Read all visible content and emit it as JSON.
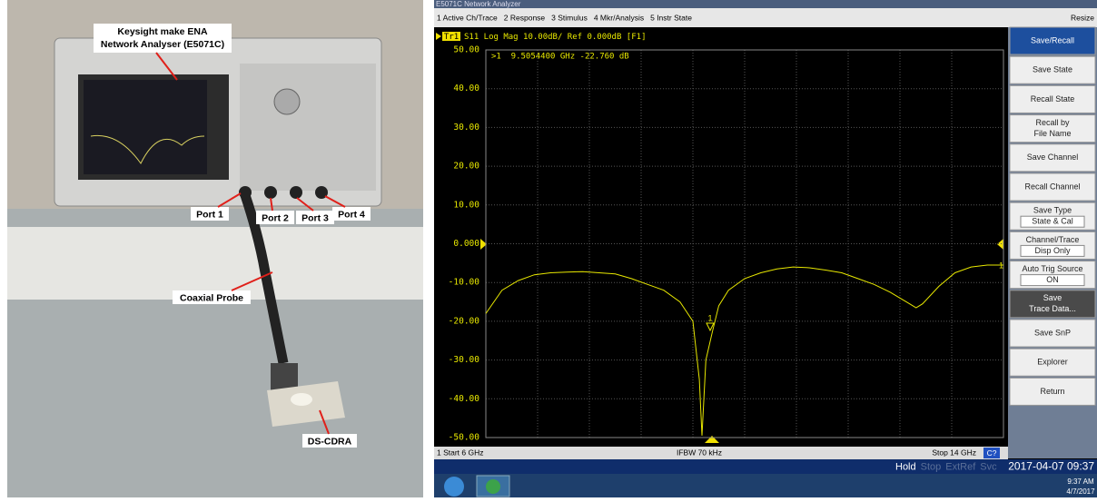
{
  "photo": {
    "analyser": [
      "Keysight make ENA",
      "Network Analyser (E5071C)"
    ],
    "ports": [
      "Port 1",
      "Port 2",
      "Port 3",
      "Port 4"
    ],
    "probe": "Coaxial Probe",
    "dut": "DS-CDRA"
  },
  "window": {
    "title": "E5071C Network Analyzer",
    "menu": [
      "1 Active Ch/Trace",
      "2 Response",
      "3 Stimulus",
      "4 Mkr/Analysis",
      "5 Instr State"
    ],
    "resize": "Resize"
  },
  "chart_data": {
    "type": "line",
    "trace_tag": "Tr1",
    "header": "S11 Log Mag 10.00dB/ Ref 0.000dB [F1]",
    "marker_readout": ">1  9.5054400 GHz -22.760 dB",
    "marker_label": "1",
    "end_label": "1",
    "x": [
      6,
      6.25,
      6.5,
      6.75,
      7,
      7.25,
      7.5,
      7.75,
      8,
      8.25,
      8.5,
      8.75,
      9,
      9.2,
      9.3,
      9.34,
      9.4,
      9.5,
      9.6,
      9.75,
      10,
      10.25,
      10.5,
      10.75,
      11,
      11.25,
      11.5,
      11.75,
      12,
      12.25,
      12.5,
      12.65,
      12.75,
      13,
      13.25,
      13.5,
      13.75,
      14
    ],
    "series": [
      {
        "name": "Tr1",
        "color": "#e8e800",
        "values": [
          -18,
          -12,
          -9.5,
          -8,
          -7.5,
          -7.3,
          -7.2,
          -7.5,
          -7.8,
          -9,
          -10.5,
          -12,
          -15,
          -20,
          -35,
          -49.5,
          -30,
          -22.76,
          -16,
          -12,
          -9,
          -7.5,
          -6.5,
          -6,
          -6.2,
          -6.8,
          -7.5,
          -9,
          -10.5,
          -12.5,
          -15,
          -16.5,
          -15.5,
          -11,
          -7.5,
          -6,
          -5.5,
          -5.5
        ]
      }
    ],
    "xlim": [
      6,
      14
    ],
    "ylim": [
      -50,
      50
    ],
    "yticks": [
      {
        "value": 50,
        "label": "50.00"
      },
      {
        "value": 40,
        "label": "40.00"
      },
      {
        "value": 30,
        "label": "30.00"
      },
      {
        "value": 20,
        "label": "20.00"
      },
      {
        "value": 10,
        "label": "10.00"
      },
      {
        "value": 0,
        "label": "0.000"
      },
      {
        "value": -10,
        "label": "-10.00"
      },
      {
        "value": -20,
        "label": "-20.00"
      },
      {
        "value": -30,
        "label": "-30.00"
      },
      {
        "value": -40,
        "label": "-40.00"
      },
      {
        "value": -50,
        "label": "-50.00"
      }
    ],
    "grid": true
  },
  "status": {
    "start": "1  Start 6 GHz",
    "ifbw": "IFBW 70 kHz",
    "stop": "Stop 14 GHz",
    "cal": "C?",
    "flags": [
      "Hold",
      "Stop",
      "ExtRef",
      "Svc"
    ],
    "datetime": "2017-04-07 09:37"
  },
  "softkeys": [
    [
      "Save/Recall"
    ],
    [
      "Save State"
    ],
    [
      "Recall State"
    ],
    [
      "Recall by",
      "File Name"
    ],
    [
      "Save Channel"
    ],
    [
      "Recall Channel"
    ],
    [
      "Save Type",
      "State & Cal"
    ],
    [
      "Channel/Trace",
      "Disp Only"
    ],
    [
      "Auto Trig Source",
      "ON"
    ],
    [
      "Save",
      "Trace Data..."
    ],
    [
      "Save SnP"
    ],
    [
      "Explorer"
    ],
    [
      "Return"
    ]
  ],
  "taskbar": {
    "time": "9:37 AM",
    "date": "4/7/2017"
  }
}
